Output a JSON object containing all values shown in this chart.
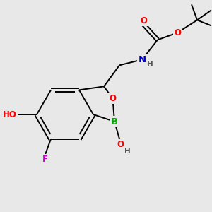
{
  "bg_color": "#e8e8e8",
  "atom_colors": {
    "C": "#000000",
    "O": "#ff0000",
    "N": "#0000cc",
    "B": "#00aa00",
    "F": "#cc00cc",
    "H": "#555555"
  },
  "bond_color": "#000000",
  "bond_width": 1.4,
  "font_size": 8.5,
  "figsize": [
    3.0,
    3.0
  ],
  "dpi": 100
}
